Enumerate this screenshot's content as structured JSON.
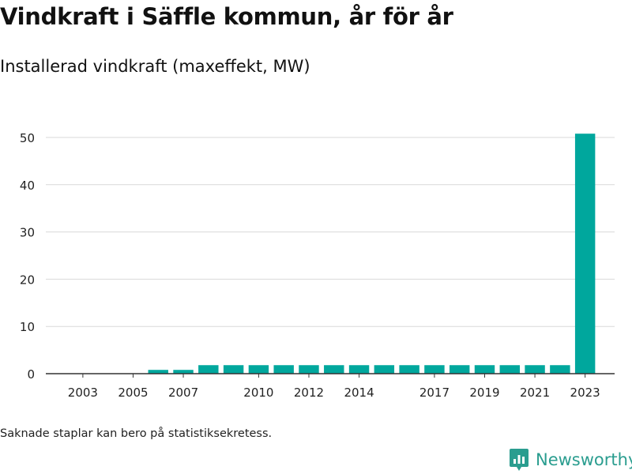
{
  "title": "Vindkraft i Säffle kommun, år för år",
  "subtitle": "Installerad vindkraft (maxeffekt, MW)",
  "footnote": "Saknade staplar kan bero på statistiksekretess.",
  "brand": {
    "name": "Newsworthy",
    "icon": "newsworthy-logo-icon"
  },
  "colors": {
    "bar": "#00a79d",
    "grid": "#d9d9d9",
    "axis": "#333333",
    "brand": "#2a9d8f"
  },
  "chart_data": {
    "type": "bar",
    "title": "Vindkraft i Säffle kommun, år för år",
    "subtitle": "Installerad vindkraft (maxeffekt, MW)",
    "xlabel": "",
    "ylabel": "",
    "categories": [
      "2003",
      "2004",
      "2005",
      "2006",
      "2007",
      "2008",
      "2009",
      "2010",
      "2011",
      "2012",
      "2013",
      "2014",
      "2015",
      "2016",
      "2017",
      "2018",
      "2019",
      "2020",
      "2021",
      "2022",
      "2023"
    ],
    "values": [
      0,
      0,
      0,
      0.8,
      0.8,
      1.8,
      1.8,
      1.8,
      1.8,
      1.8,
      1.8,
      1.8,
      1.8,
      1.8,
      1.8,
      1.8,
      1.8,
      1.8,
      1.8,
      1.8,
      50.8
    ],
    "x_tick_labels": [
      "2003",
      "2005",
      "2007",
      "2010",
      "2012",
      "2014",
      "2017",
      "2019",
      "2021",
      "2023"
    ],
    "yticks": [
      0,
      10,
      20,
      30,
      40,
      50
    ],
    "ylim": [
      0,
      53
    ],
    "grid": true,
    "legend": "none"
  }
}
